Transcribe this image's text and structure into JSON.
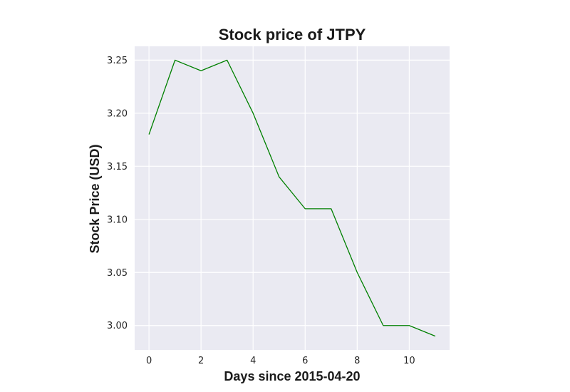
{
  "chart_data": {
    "type": "line",
    "title": "Stock price of JTPY",
    "xlabel": "Days since 2015-04-20",
    "ylabel": "Stock Price (USD)",
    "x": [
      0,
      1,
      2,
      3,
      4,
      5,
      6,
      7,
      8,
      9,
      10,
      11
    ],
    "series": [
      {
        "values": [
          3.18,
          3.25,
          3.24,
          3.25,
          3.2,
          3.14,
          3.11,
          3.11,
          3.05,
          3.0,
          3.0,
          2.99
        ]
      }
    ],
    "xlim": [
      -0.55,
      11.55
    ],
    "ylim": [
      2.977,
      3.263
    ],
    "xticks": [
      0,
      2,
      4,
      6,
      8,
      10
    ],
    "yticks": [
      3.0,
      3.05,
      3.1,
      3.15,
      3.2,
      3.25
    ],
    "xtick_labels": [
      "0",
      "2",
      "4",
      "6",
      "8",
      "10"
    ],
    "ytick_labels": [
      "3.00",
      "3.05",
      "3.10",
      "3.15",
      "3.20",
      "3.25"
    ],
    "grid": true,
    "colors": {
      "line": "#008000",
      "plot_background": "#eaeaf2",
      "grid": "#ffffff"
    }
  }
}
